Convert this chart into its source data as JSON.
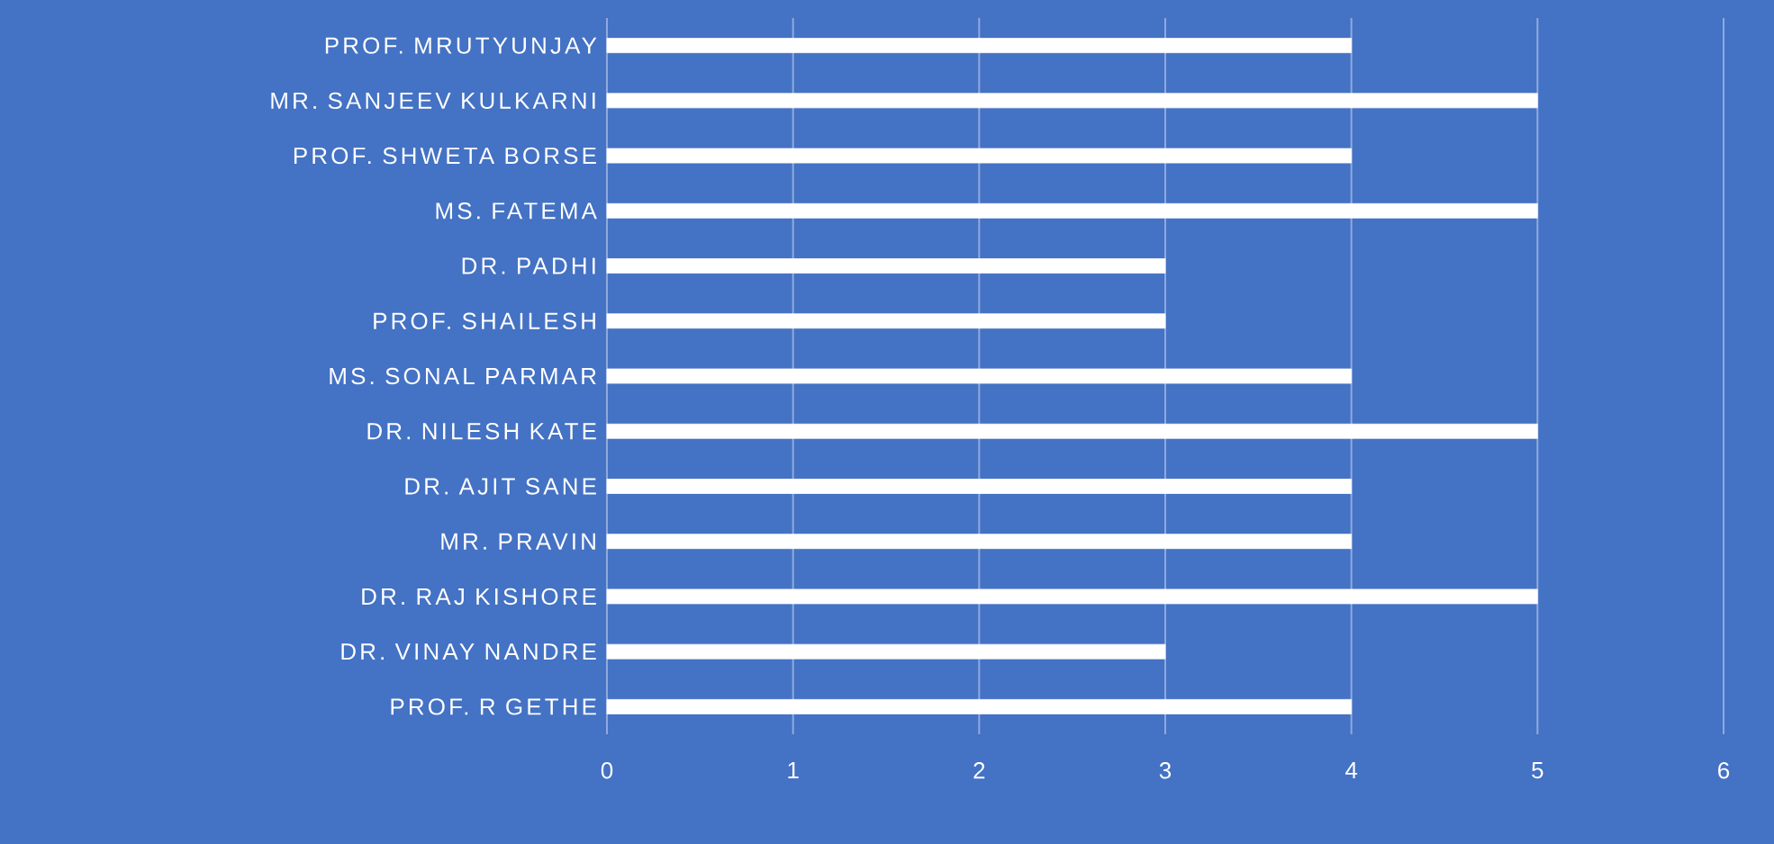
{
  "chart_data": {
    "type": "bar",
    "orientation": "horizontal",
    "categories": [
      "PROF. MRUTYUNJAY",
      "MR. SANJEEV KULKARNI",
      "PROF. SHWETA BORSE",
      "MS. FATEMA",
      "DR. PADHI",
      "PROF. SHAILESH",
      "MS. SONAL PARMAR",
      "DR. NILESH KATE",
      "DR. AJIT SANE",
      "MR. PRAVIN",
      "DR. RAJ KISHORE",
      "DR. VINAY NANDRE",
      "PROF. R GETHE"
    ],
    "values": [
      4,
      5,
      4,
      5,
      3,
      3,
      4,
      5,
      4,
      4,
      5,
      3,
      4
    ],
    "color": "#ffffff",
    "xlim": [
      0,
      6
    ],
    "xticks": [
      0,
      1,
      2,
      3,
      4,
      5,
      6
    ],
    "grid": "x"
  }
}
